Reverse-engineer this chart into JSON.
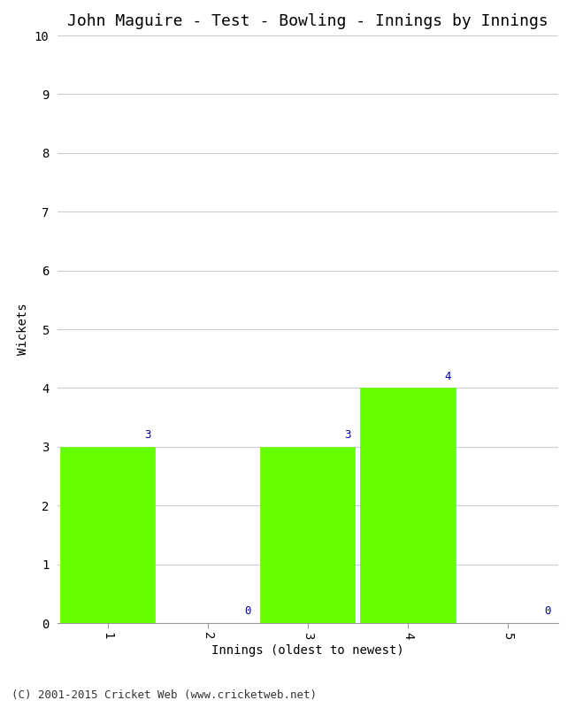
{
  "title": "John Maguire - Test - Bowling - Innings by Innings",
  "xlabel": "Innings (oldest to newest)",
  "ylabel": "Wickets",
  "categories": [
    1,
    2,
    3,
    4,
    5
  ],
  "values": [
    3,
    0,
    3,
    4,
    0
  ],
  "bar_color": "#66ff00",
  "bar_edgecolor": "#66ff00",
  "ylim": [
    0,
    10
  ],
  "yticks": [
    0,
    1,
    2,
    3,
    4,
    5,
    6,
    7,
    8,
    9,
    10
  ],
  "xticks": [
    1,
    2,
    3,
    4,
    5
  ],
  "annotation_color": "#0000aa",
  "annotation_fontsize": 9,
  "title_fontsize": 13,
  "axis_fontsize": 10,
  "tick_fontsize": 10,
  "footer": "(C) 2001-2015 Cricket Web (www.cricketweb.net)",
  "footer_fontsize": 9,
  "background_color": "#ffffff",
  "grid_color": "#cccccc"
}
